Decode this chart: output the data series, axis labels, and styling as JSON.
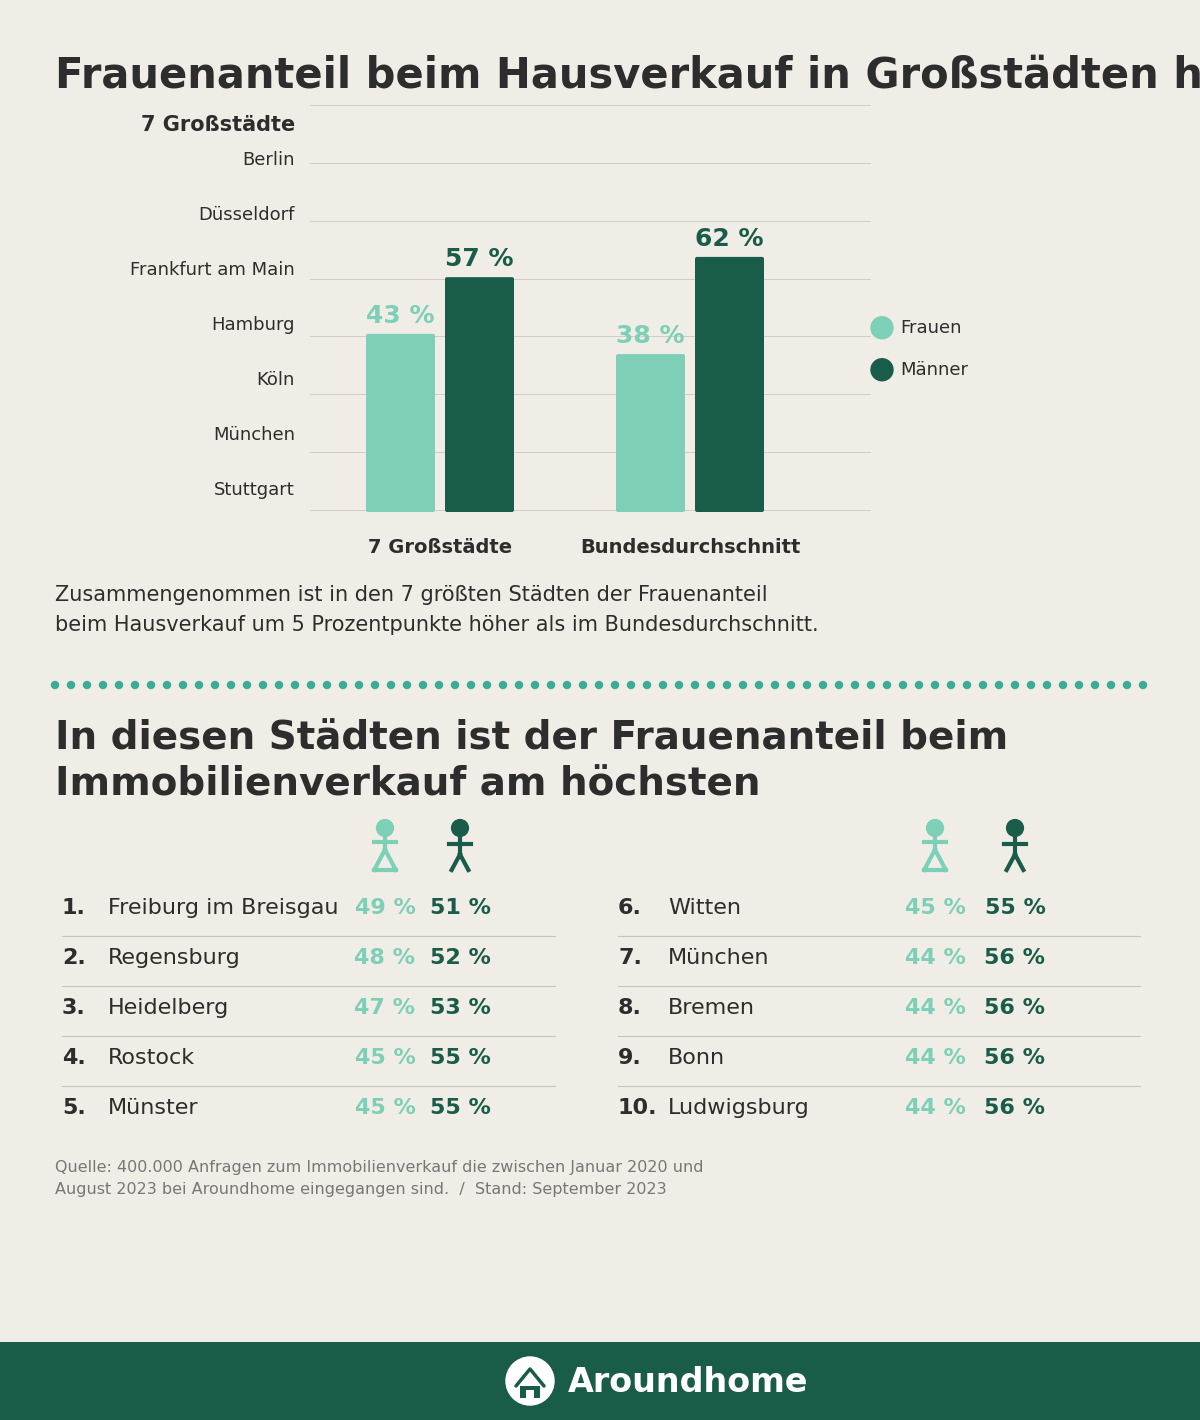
{
  "title": "Frauenanteil beim Hausverkauf in Großstädten höher",
  "bg_color": "#f0ede6",
  "frauen_color": "#7ecfb8",
  "maenner_color": "#1a5c4a",
  "text_color": "#2d2d2d",
  "teal_color": "#3aab96",
  "footer_bg": "#1a5c4a",
  "footer_text": "Aroundhome",
  "cities_label": "7 Großstädte",
  "cities": [
    "Berlin",
    "Düsseldorf",
    "Frankfurt am Main",
    "Hamburg",
    "Köln",
    "München",
    "Stuttgart"
  ],
  "bar_groups": [
    {
      "label": "7 Großstädte",
      "frauen": 43,
      "maenner": 57
    },
    {
      "label": "Bundesdurchschnitt",
      "frauen": 38,
      "maenner": 62
    }
  ],
  "legend_frauen": "Frauen",
  "legend_maenner": "Männer",
  "summary_text": "Zusammengenommen ist in den 7 größten Städten der Frauenanteil\nbeim Hausverkauf um 5 Prozentpunkte höher als im Bundesdurchschnitt.",
  "section2_title": "In diesen Städten ist der Frauenanteil beim\nImmobilienverkauf am höchsten",
  "top10": [
    {
      "rank": "1.",
      "city": "Freiburg im Breisgau",
      "frauen": "49 %",
      "maenner": "51 %"
    },
    {
      "rank": "2.",
      "city": "Regensburg",
      "frauen": "48 %",
      "maenner": "52 %"
    },
    {
      "rank": "3.",
      "city": "Heidelberg",
      "frauen": "47 %",
      "maenner": "53 %"
    },
    {
      "rank": "4.",
      "city": "Rostock",
      "frauen": "45 %",
      "maenner": "55 %"
    },
    {
      "rank": "5.",
      "city": "Münster",
      "frauen": "45 %",
      "maenner": "55 %"
    },
    {
      "rank": "6.",
      "city": "Witten",
      "frauen": "45 %",
      "maenner": "55 %"
    },
    {
      "rank": "7.",
      "city": "München",
      "frauen": "44 %",
      "maenner": "56 %"
    },
    {
      "rank": "8.",
      "city": "Bremen",
      "frauen": "44 %",
      "maenner": "56 %"
    },
    {
      "rank": "9.",
      "city": "Bonn",
      "frauen": "44 %",
      "maenner": "56 %"
    },
    {
      "rank": "10.",
      "city": "Ludwigsburg",
      "frauen": "44 %",
      "maenner": "56 %"
    }
  ],
  "source_text": "Quelle: 400.000 Anfragen zum Immobilienverkauf die zwischen Januar 2020 und\nAugust 2023 bei Aroundhome eingegangen sind.  /  Stand: September 2023"
}
